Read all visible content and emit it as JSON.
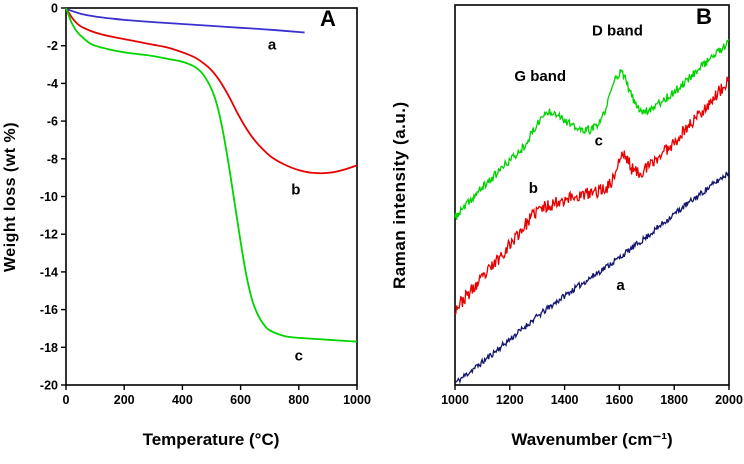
{
  "chart_data": [
    {
      "type": "line",
      "panel_label": "A",
      "xlabel": "Temperature (°C)",
      "ylabel": "Weight loss (wt %)",
      "xlim": [
        0,
        1000
      ],
      "ylim": [
        -20,
        0
      ],
      "xticks": [
        0,
        200,
        400,
        600,
        800,
        1000
      ],
      "yticks": [
        0,
        -2,
        -4,
        -6,
        -8,
        -10,
        -12,
        -14,
        -16,
        -18,
        -20
      ],
      "grid": false,
      "legend": "inline letters",
      "series": [
        {
          "name": "a",
          "color": "#3a2fd0",
          "label_pos": [
            708,
            -2.2
          ],
          "points": [
            [
              0,
              -0.05
            ],
            [
              50,
              -0.3
            ],
            [
              100,
              -0.45
            ],
            [
              150,
              -0.55
            ],
            [
              200,
              -0.63
            ],
            [
              300,
              -0.75
            ],
            [
              400,
              -0.85
            ],
            [
              500,
              -0.95
            ],
            [
              600,
              -1.05
            ],
            [
              700,
              -1.15
            ],
            [
              820,
              -1.3
            ]
          ]
        },
        {
          "name": "b",
          "color": "#e80000",
          "label_pos": [
            790,
            -9.9
          ],
          "points": [
            [
              0,
              0
            ],
            [
              20,
              -0.5
            ],
            [
              40,
              -0.85
            ],
            [
              60,
              -1.05
            ],
            [
              100,
              -1.3
            ],
            [
              150,
              -1.5
            ],
            [
              200,
              -1.65
            ],
            [
              250,
              -1.8
            ],
            [
              300,
              -1.95
            ],
            [
              350,
              -2.1
            ],
            [
              400,
              -2.35
            ],
            [
              440,
              -2.6
            ],
            [
              470,
              -2.9
            ],
            [
              500,
              -3.3
            ],
            [
              530,
              -3.9
            ],
            [
              560,
              -4.7
            ],
            [
              590,
              -5.6
            ],
            [
              620,
              -6.4
            ],
            [
              650,
              -7.05
            ],
            [
              680,
              -7.55
            ],
            [
              710,
              -7.95
            ],
            [
              750,
              -8.3
            ],
            [
              800,
              -8.6
            ],
            [
              850,
              -8.75
            ],
            [
              900,
              -8.75
            ],
            [
              950,
              -8.6
            ],
            [
              1000,
              -8.35
            ]
          ]
        },
        {
          "name": "c",
          "color": "#00d400",
          "label_pos": [
            800,
            -18.7
          ],
          "points": [
            [
              0,
              0
            ],
            [
              20,
              -0.8
            ],
            [
              40,
              -1.3
            ],
            [
              60,
              -1.6
            ],
            [
              80,
              -1.85
            ],
            [
              100,
              -2.0
            ],
            [
              150,
              -2.2
            ],
            [
              200,
              -2.35
            ],
            [
              250,
              -2.45
            ],
            [
              300,
              -2.55
            ],
            [
              350,
              -2.7
            ],
            [
              400,
              -2.85
            ],
            [
              440,
              -3.1
            ],
            [
              470,
              -3.5
            ],
            [
              500,
              -4.3
            ],
            [
              520,
              -5.2
            ],
            [
              540,
              -6.6
            ],
            [
              560,
              -8.4
            ],
            [
              580,
              -10.4
            ],
            [
              600,
              -12.4
            ],
            [
              620,
              -14.2
            ],
            [
              640,
              -15.5
            ],
            [
              660,
              -16.3
            ],
            [
              680,
              -16.8
            ],
            [
              700,
              -17.1
            ],
            [
              750,
              -17.4
            ],
            [
              800,
              -17.5
            ],
            [
              900,
              -17.6
            ],
            [
              1000,
              -17.7
            ]
          ]
        }
      ]
    },
    {
      "type": "line",
      "panel_label": "B",
      "xlabel": "Wavenumber (cm⁻¹)",
      "ylabel": "Raman intensity (a.u.)",
      "xlim": [
        1000,
        2000
      ],
      "ylim": [
        0,
        100
      ],
      "xticks": [
        1000,
        1200,
        1400,
        1600,
        1800,
        2000
      ],
      "yticks": [],
      "grid": false,
      "annotations": [
        {
          "text": "G band",
          "x": 1311,
          "y": 80
        },
        {
          "text": "D band",
          "x": 1593,
          "y": 92
        }
      ],
      "series": [
        {
          "name": "a",
          "color": "#161670",
          "label_pos": [
            1604,
            25
          ],
          "noise": 0.8,
          "seed": 11,
          "base": [
            [
              1000,
              0.5
            ],
            [
              1100,
              6
            ],
            [
              1200,
              12
            ],
            [
              1300,
              18
            ],
            [
              1400,
              23.5
            ],
            [
              1500,
              28.5
            ],
            [
              1600,
              33.5
            ],
            [
              1700,
              39
            ],
            [
              1800,
              45
            ],
            [
              1900,
              50.5
            ],
            [
              2000,
              56
            ]
          ],
          "peaks": []
        },
        {
          "name": "b",
          "color": "#e80000",
          "label_pos": [
            1286,
            50.5
          ],
          "noise": 1.7,
          "seed": 23,
          "base": [
            [
              1000,
              20
            ],
            [
              1100,
              28
            ],
            [
              1200,
              37
            ],
            [
              1300,
              46
            ],
            [
              1400,
              49
            ],
            [
              1500,
              50.5
            ],
            [
              1600,
              53
            ],
            [
              1700,
              57
            ],
            [
              1800,
              64
            ],
            [
              1900,
              72
            ],
            [
              2000,
              80
            ]
          ],
          "peaks": [
            {
              "center": 1612,
              "amp": 7,
              "width": 22
            }
          ]
        },
        {
          "name": "c",
          "color": "#00d400",
          "label_pos": [
            1525,
            63
          ],
          "noise": 1.1,
          "seed": 37,
          "base": [
            [
              1000,
              44
            ],
            [
              1100,
              52
            ],
            [
              1200,
              59
            ],
            [
              1300,
              63
            ],
            [
              1400,
              65
            ],
            [
              1500,
              67
            ],
            [
              1600,
              69
            ],
            [
              1700,
              72
            ],
            [
              1800,
              77
            ],
            [
              1900,
              84
            ],
            [
              2000,
              90
            ]
          ],
          "peaks": [
            {
              "center": 1345,
              "amp": 8,
              "width": 55
            },
            {
              "center": 1600,
              "amp": 13,
              "width": 35
            }
          ]
        }
      ]
    }
  ]
}
